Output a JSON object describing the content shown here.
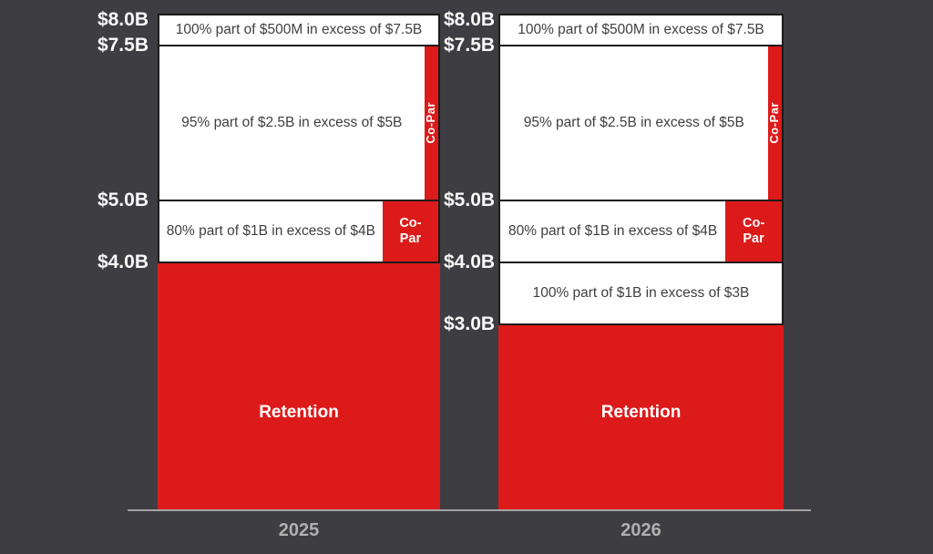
{
  "colors": {
    "background": "#3E3E42",
    "accent_red": "#DC1A1A",
    "box_background": "#FFFFFF",
    "box_border": "#1B1B1B",
    "box_text": "#3F3F3F",
    "tick_label": "#FAFAFA",
    "year_label": "#B0B0B0",
    "axis_line": "#A3A3A3",
    "co_par_text": "#FFFFFF"
  },
  "chart_data": {
    "type": "bar",
    "subtype": "layered-reinsurance-tower",
    "title": "",
    "xlabel": "",
    "ylabel": "",
    "value_unit": "USD billions",
    "ylim": [
      0,
      8
    ],
    "grid": "off",
    "legend": "none",
    "categories": [
      "2025",
      "2026"
    ],
    "left_axis_ticks": [
      {
        "label": "$8.0B",
        "value": 8.0
      },
      {
        "label": "$7.5B",
        "value": 7.5
      },
      {
        "label": "$5.0B",
        "value": 5.0
      },
      {
        "label": "$4.0B",
        "value": 4.0
      }
    ],
    "middle_axis_ticks": [
      {
        "label": "$8.0B",
        "value": 8.0
      },
      {
        "label": "$7.5B",
        "value": 7.5
      },
      {
        "label": "$5.0B",
        "value": 5.0
      },
      {
        "label": "$4.0B",
        "value": 4.0
      },
      {
        "label": "$3.0B",
        "value": 3.0
      }
    ],
    "towers": [
      {
        "layers": [
          {
            "kind": "retention",
            "label": "Retention",
            "from": 0,
            "to": 4.0
          },
          {
            "kind": "layer",
            "label": "80% part of $1B in excess of $4B",
            "from": 4.0,
            "to": 5.0,
            "placed_share": 0.8,
            "co_par": {
              "label": "Co-Par",
              "orientation": "horizontal"
            }
          },
          {
            "kind": "layer",
            "label": "95% part of $2.5B in excess of $5B",
            "from": 5.0,
            "to": 7.5,
            "placed_share": 0.95,
            "co_par": {
              "label": "Co-Par",
              "orientation": "vertical"
            }
          },
          {
            "kind": "layer",
            "label": "100% part of $500M in excess of $7.5B",
            "from": 7.5,
            "to": 8.0,
            "placed_share": 1.0,
            "co_par": null
          }
        ]
      },
      {
        "layers": [
          {
            "kind": "retention",
            "label": "Retention",
            "from": 0,
            "to": 3.0
          },
          {
            "kind": "layer",
            "label": "100% part of $1B in excess of $3B",
            "from": 3.0,
            "to": 4.0,
            "placed_share": 1.0,
            "co_par": null
          },
          {
            "kind": "layer",
            "label": "80% part of $1B in excess of $4B",
            "from": 4.0,
            "to": 5.0,
            "placed_share": 0.8,
            "co_par": {
              "label": "Co-Par",
              "orientation": "horizontal"
            }
          },
          {
            "kind": "layer",
            "label": "95% part of $2.5B in excess of $5B",
            "from": 5.0,
            "to": 7.5,
            "placed_share": 0.95,
            "co_par": {
              "label": "Co-Par",
              "orientation": "vertical"
            }
          },
          {
            "kind": "layer",
            "label": "100% part of $500M in excess of $7.5B",
            "from": 7.5,
            "to": 8.0,
            "placed_share": 1.0,
            "co_par": null
          }
        ]
      }
    ]
  }
}
